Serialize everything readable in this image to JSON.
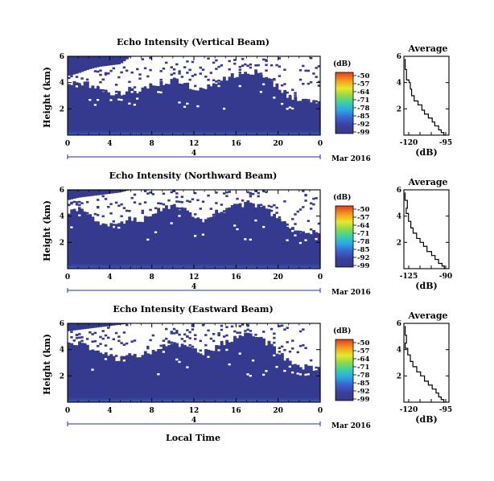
{
  "xlabel_shared": "Local Time",
  "chart_data": [
    {
      "type": "heatmap",
      "title": "Echo Intensity (Vertical Beam)",
      "ylabel": "Height (km)",
      "xlim": [
        0,
        24
      ],
      "ylim": [
        0,
        6
      ],
      "x_ticks": [
        "0",
        "4",
        "8",
        "12",
        "16",
        "20",
        "0"
      ],
      "y_ticks": [
        "2",
        "4",
        "6"
      ],
      "day_label": "4",
      "date_label": "Mar 2016",
      "colorbar": {
        "unit": "(dB)",
        "labels": [
          "-50",
          "-57",
          "-64",
          "-71",
          "-78",
          "-85",
          "-92",
          "-99"
        ]
      },
      "cover_top_km": [
        4.0,
        4.1,
        3.8,
        3.4,
        3.2,
        3.1,
        3.6,
        3.3,
        3.8,
        4.0,
        4.2,
        4.0,
        3.4,
        3.6,
        4.1,
        4.3,
        4.6,
        4.9,
        4.7,
        4.4,
        3.6,
        3.0,
        2.8,
        2.7,
        2.4
      ],
      "gap_bottom_km": [
        4.5,
        4.7,
        5.0,
        5.2,
        5.3,
        5.4,
        6.0,
        6.0,
        6.0,
        6.0,
        6.0,
        6.0,
        6.0,
        6.0,
        6.0,
        6.0,
        6.0,
        6.0,
        6.0,
        6.0,
        6.0,
        6.0,
        6.0,
        6.0,
        6.0
      ],
      "average_profile": {
        "title": "Average",
        "xlabel": "(dB)",
        "x_ticks": [
          "-120",
          "-95"
        ],
        "y_ticks": [
          "2",
          "4",
          "6"
        ],
        "xlim": [
          -125,
          -90
        ],
        "ylim": [
          0,
          6
        ],
        "x": [
          -124,
          -123,
          -121,
          -120,
          -119,
          -117,
          -114,
          -111,
          -109,
          -106,
          -103,
          -101,
          -98,
          -96,
          -94,
          -93
        ],
        "y": [
          5.8,
          5.0,
          4.2,
          4.0,
          3.5,
          3.0,
          2.6,
          2.3,
          1.9,
          1.6,
          1.3,
          1.0,
          0.7,
          0.4,
          0.2,
          0.0
        ]
      }
    },
    {
      "type": "heatmap",
      "title": "Echo Intensity (Northward Beam)",
      "ylabel": "Height (km)",
      "xlim": [
        0,
        24
      ],
      "ylim": [
        0,
        6
      ],
      "x_ticks": [
        "0",
        "4",
        "8",
        "12",
        "16",
        "20",
        "0"
      ],
      "y_ticks": [
        "2",
        "4",
        "6"
      ],
      "day_label": "4",
      "date_label": "Mar 2016",
      "colorbar": {
        "unit": "(dB)",
        "labels": [
          "-50",
          "-57",
          "-64",
          "-71",
          "-78",
          "-85",
          "-92",
          "-99"
        ]
      },
      "cover_top_km": [
        4.3,
        4.4,
        4.0,
        3.6,
        3.3,
        3.4,
        3.9,
        3.6,
        4.2,
        4.6,
        4.8,
        4.5,
        3.9,
        3.7,
        4.2,
        4.5,
        4.8,
        5.0,
        4.8,
        4.5,
        3.7,
        3.1,
        2.9,
        2.8,
        2.6
      ],
      "gap_bottom_km": [
        5.2,
        5.4,
        5.5,
        5.6,
        5.7,
        5.8,
        6.0,
        6.0,
        6.0,
        6.0,
        6.0,
        6.0,
        6.0,
        6.0,
        6.0,
        6.0,
        6.0,
        6.0,
        6.0,
        6.0,
        6.0,
        6.0,
        6.0,
        6.0,
        6.0
      ],
      "average_profile": {
        "title": "Average",
        "xlabel": "(dB)",
        "x_ticks": [
          "-125",
          "-90"
        ],
        "y_ticks": [
          "2",
          "4",
          "6"
        ],
        "xlim": [
          -127,
          -88
        ],
        "ylim": [
          0,
          6
        ],
        "x": [
          -126,
          -124,
          -125,
          -123,
          -121,
          -119,
          -116,
          -113,
          -110,
          -107,
          -103,
          -100,
          -97,
          -94,
          -92,
          -91
        ],
        "y": [
          5.8,
          5.2,
          4.6,
          4.2,
          3.6,
          3.1,
          2.7,
          2.3,
          2.0,
          1.7,
          1.3,
          1.0,
          0.7,
          0.4,
          0.2,
          0.0
        ]
      }
    },
    {
      "type": "heatmap",
      "title": "Echo Intensity (Eastward Beam)",
      "ylabel": "Height (km)",
      "xlim": [
        0,
        24
      ],
      "ylim": [
        0,
        6
      ],
      "x_ticks": [
        "0",
        "4",
        "8",
        "12",
        "16",
        "20",
        "0"
      ],
      "y_ticks": [
        "2",
        "4",
        "6"
      ],
      "day_label": "4",
      "date_label": "Mar 2016",
      "colorbar": {
        "unit": "(dB)",
        "labels": [
          "-50",
          "-57",
          "-64",
          "-71",
          "-78",
          "-85",
          "-92",
          "-99"
        ]
      },
      "cover_top_km": [
        4.4,
        4.5,
        4.2,
        3.8,
        3.5,
        3.3,
        3.8,
        3.5,
        3.9,
        4.2,
        4.4,
        4.3,
        3.9,
        3.8,
        4.1,
        4.6,
        4.9,
        5.1,
        4.9,
        4.5,
        3.8,
        3.1,
        2.8,
        2.6,
        2.5
      ],
      "gap_bottom_km": [
        5.4,
        5.5,
        5.6,
        5.7,
        5.8,
        5.9,
        6.0,
        6.0,
        6.0,
        6.0,
        6.0,
        6.0,
        6.0,
        6.0,
        6.0,
        6.0,
        6.0,
        6.0,
        6.0,
        6.0,
        6.0,
        6.0,
        6.0,
        6.0,
        6.0
      ],
      "average_profile": {
        "title": "Average",
        "xlabel": "(dB)",
        "x_ticks": [
          "-120",
          "-95"
        ],
        "y_ticks": [
          "2",
          "4",
          "6"
        ],
        "xlim": [
          -125,
          -90
        ],
        "ylim": [
          0,
          6
        ],
        "x": [
          -124,
          -123,
          -124,
          -122,
          -120,
          -118,
          -115,
          -112,
          -109,
          -106,
          -103,
          -100,
          -98,
          -96,
          -94,
          -93
        ],
        "y": [
          5.8,
          5.1,
          4.5,
          4.1,
          3.6,
          3.1,
          2.7,
          2.3,
          2.0,
          1.6,
          1.3,
          1.0,
          0.7,
          0.4,
          0.2,
          0.0
        ]
      }
    }
  ],
  "colors": {
    "background_echo": "#353a8f",
    "near_ground": "#3d6bd6",
    "colorbar": [
      "#e83a1e",
      "#f3a01b",
      "#e6e82c",
      "#8fd84a",
      "#39d0a8",
      "#2aa6e6",
      "#3a62d3",
      "#3c3f98",
      "#353a8f"
    ]
  }
}
